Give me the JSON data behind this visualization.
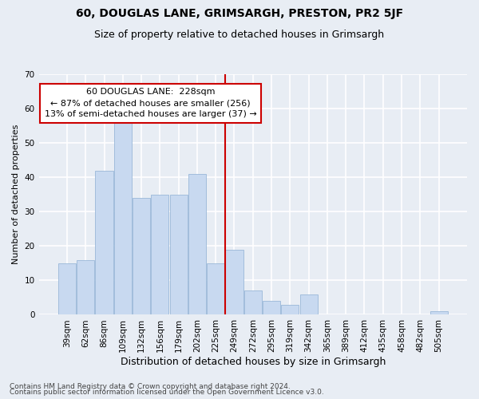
{
  "title": "60, DOUGLAS LANE, GRIMSARGH, PRESTON, PR2 5JF",
  "subtitle": "Size of property relative to detached houses in Grimsargh",
  "xlabel": "Distribution of detached houses by size in Grimsargh",
  "ylabel": "Number of detached properties",
  "categories": [
    "39sqm",
    "62sqm",
    "86sqm",
    "109sqm",
    "132sqm",
    "156sqm",
    "179sqm",
    "202sqm",
    "225sqm",
    "249sqm",
    "272sqm",
    "295sqm",
    "319sqm",
    "342sqm",
    "365sqm",
    "389sqm",
    "412sqm",
    "435sqm",
    "458sqm",
    "482sqm",
    "505sqm"
  ],
  "values": [
    15,
    16,
    42,
    57,
    34,
    35,
    35,
    41,
    15,
    19,
    7,
    4,
    3,
    6,
    0,
    0,
    0,
    0,
    0,
    0,
    1
  ],
  "bar_color": "#c8d9f0",
  "bar_edge_color": "#9ab8d8",
  "subject_line_color": "#cc0000",
  "annotation_line1": "60 DOUGLAS LANE:  228sqm",
  "annotation_line2": "← 87% of detached houses are smaller (256)",
  "annotation_line3": "13% of semi-detached houses are larger (37) →",
  "annotation_box_color": "#ffffff",
  "annotation_box_edge_color": "#cc0000",
  "ylim": [
    0,
    70
  ],
  "yticks": [
    0,
    10,
    20,
    30,
    40,
    50,
    60,
    70
  ],
  "background_color": "#e8edf4",
  "grid_color": "#ffffff",
  "footer_line1": "Contains HM Land Registry data © Crown copyright and database right 2024.",
  "footer_line2": "Contains public sector information licensed under the Open Government Licence v3.0.",
  "title_fontsize": 10,
  "subtitle_fontsize": 9,
  "xlabel_fontsize": 9,
  "ylabel_fontsize": 8,
  "tick_fontsize": 7.5,
  "footer_fontsize": 6.5,
  "annotation_fontsize": 8
}
